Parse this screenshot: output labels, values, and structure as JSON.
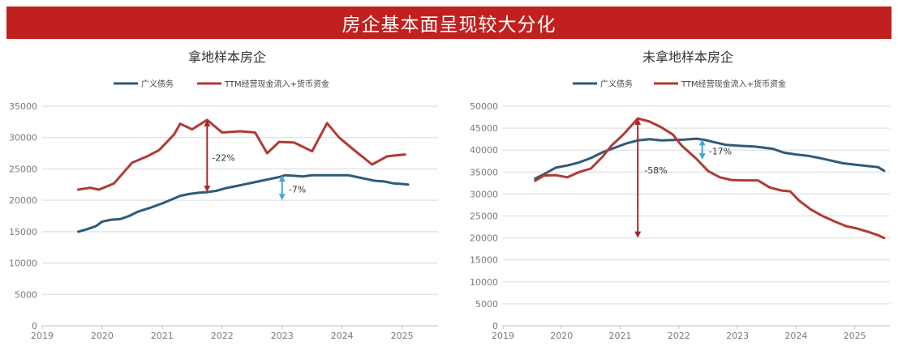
{
  "banner_title": "房企基本面呈现较大分化",
  "colors": {
    "banner": "#c0201e",
    "debt": "#2f5a7a",
    "cash": "#b03a35",
    "arrow_red": "#a8262a",
    "arrow_blue": "#4ea5cf",
    "grid": "#d9d9d9"
  },
  "chart_data": [
    {
      "type": "line",
      "title": "拿地样本房企",
      "xlim": [
        2019,
        2025.6
      ],
      "ylim": [
        0,
        35000
      ],
      "x_ticks": [
        "2019",
        "2020",
        "2021",
        "2022",
        "2023",
        "2024",
        "2025"
      ],
      "y_ticks": [
        "0",
        "5000",
        "10000",
        "15000",
        "20000",
        "25000",
        "30000",
        "35000"
      ],
      "series": [
        {
          "name": "广义债务",
          "color": "#2f5a7a",
          "points": [
            [
              2019.6,
              15000
            ],
            [
              2019.75,
              15400
            ],
            [
              2019.9,
              15900
            ],
            [
              2020.0,
              16600
            ],
            [
              2020.15,
              16900
            ],
            [
              2020.3,
              17000
            ],
            [
              2020.45,
              17500
            ],
            [
              2020.6,
              18200
            ],
            [
              2020.8,
              18800
            ],
            [
              2021.0,
              19500
            ],
            [
              2021.15,
              20100
            ],
            [
              2021.3,
              20700
            ],
            [
              2021.45,
              21000
            ],
            [
              2021.6,
              21200
            ],
            [
              2021.75,
              21300
            ],
            [
              2021.9,
              21500
            ],
            [
              2022.05,
              21900
            ],
            [
              2022.2,
              22200
            ],
            [
              2022.35,
              22500
            ],
            [
              2022.5,
              22800
            ],
            [
              2022.65,
              23100
            ],
            [
              2022.8,
              23400
            ],
            [
              2022.95,
              23700
            ],
            [
              2023.05,
              24000
            ],
            [
              2023.2,
              23900
            ],
            [
              2023.35,
              23800
            ],
            [
              2023.5,
              24000
            ],
            [
              2023.7,
              24000
            ],
            [
              2023.9,
              24000
            ],
            [
              2024.1,
              24000
            ],
            [
              2024.25,
              23700
            ],
            [
              2024.4,
              23400
            ],
            [
              2024.55,
              23100
            ],
            [
              2024.7,
              23000
            ],
            [
              2024.85,
              22700
            ],
            [
              2025.0,
              22600
            ],
            [
              2025.1,
              22500
            ]
          ]
        },
        {
          "name": "TTM经营现金流入+货币资金",
          "color": "#b03a35",
          "points": [
            [
              2019.6,
              21700
            ],
            [
              2019.8,
              22000
            ],
            [
              2019.95,
              21700
            ],
            [
              2020.2,
              22700
            ],
            [
              2020.5,
              26000
            ],
            [
              2020.75,
              27000
            ],
            [
              2020.95,
              28000
            ],
            [
              2021.2,
              30500
            ],
            [
              2021.3,
              32200
            ],
            [
              2021.5,
              31300
            ],
            [
              2021.75,
              32800
            ],
            [
              2022.0,
              30800
            ],
            [
              2022.3,
              31000
            ],
            [
              2022.55,
              30800
            ],
            [
              2022.75,
              27500
            ],
            [
              2022.95,
              29300
            ],
            [
              2023.2,
              29200
            ],
            [
              2023.5,
              27800
            ],
            [
              2023.75,
              32300
            ],
            [
              2023.95,
              30000
            ],
            [
              2024.2,
              28000
            ],
            [
              2024.5,
              25700
            ],
            [
              2024.75,
              27000
            ],
            [
              2025.05,
              27300
            ]
          ]
        }
      ],
      "annotations": [
        {
          "label": "-22%",
          "x": 2021.75,
          "from": 32800,
          "to": 21300,
          "color": "#a8262a"
        },
        {
          "label": "-7%",
          "x": 2023.0,
          "from": 24000,
          "to": 20000,
          "color": "#4ea5cf"
        }
      ]
    },
    {
      "type": "line",
      "title": "未拿地样本房企",
      "xlim": [
        2019,
        2025.6
      ],
      "ylim": [
        0,
        50000
      ],
      "x_ticks": [
        "2019",
        "2020",
        "2021",
        "2022",
        "2023",
        "2024",
        "2025"
      ],
      "y_ticks": [
        "0",
        "5000",
        "10000",
        "15000",
        "20000",
        "25000",
        "30000",
        "35000",
        "40000",
        "45000",
        "50000"
      ],
      "series": [
        {
          "name": "广义债务",
          "color": "#2f5a7a",
          "points": [
            [
              2019.55,
              33500
            ],
            [
              2019.7,
              34500
            ],
            [
              2019.9,
              36000
            ],
            [
              2020.1,
              36500
            ],
            [
              2020.3,
              37200
            ],
            [
              2020.5,
              38200
            ],
            [
              2020.7,
              39500
            ],
            [
              2020.9,
              40500
            ],
            [
              2021.1,
              41500
            ],
            [
              2021.3,
              42200
            ],
            [
              2021.5,
              42500
            ],
            [
              2021.7,
              42200
            ],
            [
              2021.9,
              42300
            ],
            [
              2022.1,
              42400
            ],
            [
              2022.3,
              42600
            ],
            [
              2022.45,
              42300
            ],
            [
              2022.6,
              41800
            ],
            [
              2022.8,
              41200
            ],
            [
              2023.0,
              41000
            ],
            [
              2023.3,
              40800
            ],
            [
              2023.6,
              40300
            ],
            [
              2023.8,
              39400
            ],
            [
              2024.0,
              39000
            ],
            [
              2024.2,
              38700
            ],
            [
              2024.4,
              38200
            ],
            [
              2024.6,
              37600
            ],
            [
              2024.8,
              37000
            ],
            [
              2025.0,
              36700
            ],
            [
              2025.2,
              36400
            ],
            [
              2025.4,
              36100
            ],
            [
              2025.5,
              35300
            ]
          ]
        },
        {
          "name": "TTM经营现金流入+货币资金",
          "color": "#b03a35",
          "points": [
            [
              2019.55,
              33000
            ],
            [
              2019.7,
              34200
            ],
            [
              2019.9,
              34300
            ],
            [
              2020.1,
              33800
            ],
            [
              2020.3,
              35000
            ],
            [
              2020.5,
              35800
            ],
            [
              2020.7,
              38500
            ],
            [
              2020.85,
              41000
            ],
            [
              2021.05,
              43500
            ],
            [
              2021.3,
              47200
            ],
            [
              2021.5,
              46500
            ],
            [
              2021.7,
              45200
            ],
            [
              2021.9,
              43500
            ],
            [
              2022.05,
              41000
            ],
            [
              2022.3,
              38000
            ],
            [
              2022.5,
              35200
            ],
            [
              2022.7,
              33800
            ],
            [
              2022.9,
              33200
            ],
            [
              2023.1,
              33100
            ],
            [
              2023.35,
              33100
            ],
            [
              2023.55,
              31500
            ],
            [
              2023.75,
              30800
            ],
            [
              2023.9,
              30600
            ],
            [
              2024.05,
              28500
            ],
            [
              2024.25,
              26500
            ],
            [
              2024.45,
              25000
            ],
            [
              2024.65,
              23800
            ],
            [
              2024.85,
              22700
            ],
            [
              2025.05,
              22100
            ],
            [
              2025.25,
              21300
            ],
            [
              2025.4,
              20600
            ],
            [
              2025.5,
              20000
            ]
          ]
        }
      ],
      "annotations": [
        {
          "label": "-17%",
          "x": 2022.4,
          "from": 42500,
          "to": 37800,
          "color": "#4ea5cf"
        },
        {
          "label": "-58%",
          "x": 2021.3,
          "from": 47200,
          "to": 20000,
          "color": "#a8262a"
        }
      ]
    }
  ]
}
